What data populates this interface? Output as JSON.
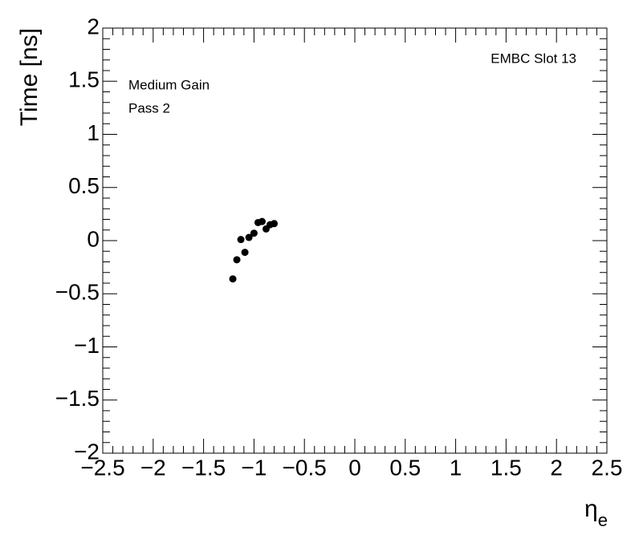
{
  "chart_data": {
    "type": "scatter",
    "x_label": {
      "symbol": "η",
      "subscript": "e"
    },
    "y_label": "Time [ns]",
    "annotations": [
      "EMBC Slot 13",
      "Medium Gain",
      "Pass 2"
    ],
    "x": [
      -1.21,
      -1.17,
      -1.13,
      -1.09,
      -1.05,
      -1.0,
      -0.96,
      -0.92,
      -0.88,
      -0.84,
      -0.8
    ],
    "values": [
      -0.36,
      -0.18,
      0.01,
      -0.11,
      0.03,
      0.07,
      0.17,
      0.18,
      0.11,
      0.15,
      0.16
    ],
    "color": "#000000",
    "xlim": [
      -2.5,
      2.5
    ],
    "ylim": [
      -2,
      2
    ],
    "xticks": [
      {
        "value": -2.5,
        "label": "−2.5"
      },
      {
        "value": -2,
        "label": "−2"
      },
      {
        "value": -1.5,
        "label": "−1.5"
      },
      {
        "value": -1,
        "label": "−1"
      },
      {
        "value": -0.5,
        "label": "−0.5"
      },
      0,
      0.5,
      1,
      1.5,
      2,
      2.5
    ],
    "yticks": [
      {
        "value": -2,
        "label": "−2"
      },
      {
        "value": -1.5,
        "label": "−1.5"
      },
      {
        "value": -1,
        "label": "−1"
      },
      {
        "value": -0.5,
        "label": "−0.5"
      },
      0,
      0.5,
      1,
      1.5,
      2
    ]
  }
}
